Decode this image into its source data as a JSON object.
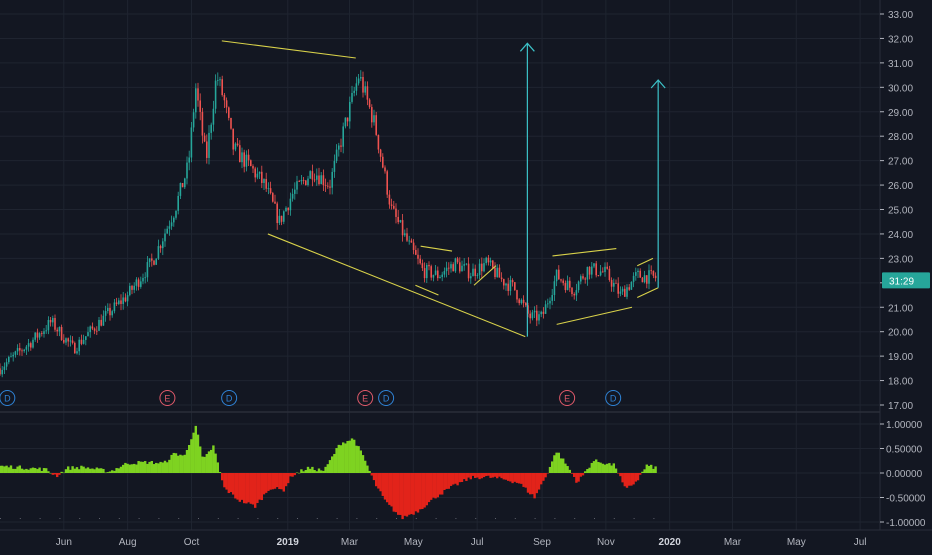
{
  "colors": {
    "background": "#131722",
    "grid": "#1f2430",
    "axis_text": "#b2b5be",
    "up": "#26a69a",
    "down": "#ef5350",
    "pattern_line": "#d9d24a",
    "target_arrow": "#3cc3c9",
    "osc_pos": "#7ed321",
    "osc_neg": "#e2231a",
    "earnings": "#e05a6a",
    "dividend": "#2f83d6",
    "last_label_bg": "#26a69a",
    "separator": "#2a2e39"
  },
  "chart_data": [
    {
      "type": "candlestick",
      "x_range": [
        "2018-04-01",
        "2020-07-20"
      ],
      "ylim": [
        16.9,
        33.5
      ],
      "y_ticks": [
        "17.00",
        "18.00",
        "19.00",
        "20.00",
        "21.00",
        "22.00",
        "23.00",
        "24.00",
        "25.00",
        "26.00",
        "27.00",
        "28.00",
        "29.00",
        "30.00",
        "31.00",
        "32.00",
        "33.00"
      ],
      "x_ticks": [
        {
          "label": "Jun",
          "date": "2018-06-01"
        },
        {
          "label": "Aug",
          "date": "2018-08-01"
        },
        {
          "label": "Oct",
          "date": "2018-10-01"
        },
        {
          "label": "2019",
          "date": "2019-01-01",
          "bold": true
        },
        {
          "label": "Mar",
          "date": "2019-03-01"
        },
        {
          "label": "May",
          "date": "2019-05-01"
        },
        {
          "label": "Jul",
          "date": "2019-07-01"
        },
        {
          "label": "Sep",
          "date": "2019-09-01"
        },
        {
          "label": "Nov",
          "date": "2019-11-01"
        },
        {
          "label": "2020",
          "date": "2020-01-01",
          "bold": true
        },
        {
          "label": "Mar",
          "date": "2020-03-01"
        },
        {
          "label": "May",
          "date": "2020-05-01"
        },
        {
          "label": "Jul",
          "date": "2020-07-01"
        }
      ],
      "close_path": [
        [
          "2018-04-01",
          18.5
        ],
        [
          "2018-05-01",
          19.6
        ],
        [
          "2018-05-20",
          20.4
        ],
        [
          "2018-06-10",
          19.3
        ],
        [
          "2018-07-10",
          20.6
        ],
        [
          "2018-08-01",
          21.5
        ],
        [
          "2018-08-25",
          22.9
        ],
        [
          "2018-09-15",
          25.0
        ],
        [
          "2018-09-28",
          26.8
        ],
        [
          "2018-10-05",
          30.0
        ],
        [
          "2018-10-15",
          27.0
        ],
        [
          "2018-10-25",
          30.5
        ],
        [
          "2018-11-01",
          29.5
        ],
        [
          "2018-11-10",
          27.5
        ],
        [
          "2018-11-25",
          26.8
        ],
        [
          "2018-12-10",
          26.0
        ],
        [
          "2018-12-24",
          24.5
        ],
        [
          "2019-01-05",
          25.6
        ],
        [
          "2019-01-25",
          26.6
        ],
        [
          "2019-02-10",
          26.0
        ],
        [
          "2019-02-25",
          28.5
        ],
        [
          "2019-03-10",
          30.5
        ],
        [
          "2019-03-25",
          28.5
        ],
        [
          "2019-04-10",
          25.0
        ],
        [
          "2019-04-25",
          23.7
        ],
        [
          "2019-05-10",
          22.5
        ],
        [
          "2019-05-25",
          22.3
        ],
        [
          "2019-06-10",
          22.8
        ],
        [
          "2019-06-25",
          22.4
        ],
        [
          "2019-07-10",
          22.8
        ],
        [
          "2019-07-25",
          22.1
        ],
        [
          "2019-08-05",
          21.8
        ],
        [
          "2019-08-20",
          20.6
        ],
        [
          "2019-09-01",
          20.6
        ],
        [
          "2019-09-15",
          22.3
        ],
        [
          "2019-10-01",
          21.7
        ],
        [
          "2019-10-15",
          22.6
        ],
        [
          "2019-11-01",
          22.4
        ],
        [
          "2019-11-15",
          21.5
        ],
        [
          "2019-12-01",
          22.3
        ],
        [
          "2019-12-20",
          22.2
        ]
      ],
      "last_price_label": "31:29",
      "last_price": 22.1,
      "pattern_lines": [
        [
          [
            "2018-10-30",
            31.9
          ],
          [
            "2019-03-07",
            31.2
          ]
        ],
        [
          [
            "2018-12-13",
            24.0
          ],
          [
            "2019-08-16",
            19.8
          ]
        ],
        [
          [
            "2019-05-08",
            23.5
          ],
          [
            "2019-06-07",
            23.3
          ]
        ],
        [
          [
            "2019-05-03",
            21.9
          ],
          [
            "2019-05-25",
            21.5
          ]
        ],
        [
          [
            "2019-06-28",
            21.9
          ],
          [
            "2019-07-19",
            22.7
          ]
        ],
        [
          [
            "2019-09-11",
            23.1
          ],
          [
            "2019-11-11",
            23.4
          ]
        ],
        [
          [
            "2019-09-15",
            20.3
          ],
          [
            "2019-11-26",
            21.0
          ]
        ],
        [
          [
            "2019-12-01",
            22.7
          ],
          [
            "2019-12-16",
            23.0
          ]
        ],
        [
          [
            "2019-12-01",
            21.4
          ],
          [
            "2019-12-21",
            21.8
          ]
        ]
      ],
      "target_arrows": [
        {
          "date": "2019-08-18",
          "from": 19.8,
          "to": 31.8
        },
        {
          "date": "2019-12-21",
          "from": 21.8,
          "to": 30.3
        }
      ],
      "events": [
        {
          "label": "D",
          "kind": "dividend",
          "date": "2018-04-08"
        },
        {
          "label": "E",
          "kind": "earnings",
          "date": "2018-09-08"
        },
        {
          "label": "D",
          "kind": "dividend",
          "date": "2018-11-06"
        },
        {
          "label": "E",
          "kind": "earnings",
          "date": "2019-03-16"
        },
        {
          "label": "D",
          "kind": "dividend",
          "date": "2019-04-05"
        },
        {
          "label": "E",
          "kind": "earnings",
          "date": "2019-09-25"
        },
        {
          "label": "D",
          "kind": "dividend",
          "date": "2019-11-08"
        }
      ]
    },
    {
      "type": "area",
      "ylim": [
        -1.08,
        1.12
      ],
      "y_ticks": [
        "1.00000",
        "0.50000",
        "0.00000",
        "-0.50000",
        "-1.00000"
      ],
      "y_tick_values": [
        1,
        0.5,
        0,
        -0.5,
        -1
      ],
      "x_range": [
        "2018-04-01",
        "2020-07-20"
      ],
      "values_path": [
        [
          "2018-04-01",
          0.14
        ],
        [
          "2018-05-01",
          0.1
        ],
        [
          "2018-05-15",
          0.07
        ],
        [
          "2018-05-25",
          -0.06
        ],
        [
          "2018-06-05",
          0.1
        ],
        [
          "2018-06-20",
          0.12
        ],
        [
          "2018-07-15",
          0.03
        ],
        [
          "2018-08-01",
          0.2
        ],
        [
          "2018-08-20",
          0.22
        ],
        [
          "2018-09-05",
          0.2
        ],
        [
          "2018-09-15",
          0.4
        ],
        [
          "2018-09-25",
          0.35
        ],
        [
          "2018-10-05",
          0.98
        ],
        [
          "2018-10-12",
          0.25
        ],
        [
          "2018-10-22",
          0.55
        ],
        [
          "2018-11-01",
          -0.3
        ],
        [
          "2018-11-15",
          -0.55
        ],
        [
          "2018-12-01",
          -0.68
        ],
        [
          "2018-12-15",
          -0.3
        ],
        [
          "2018-12-28",
          -0.35
        ],
        [
          "2019-01-05",
          -0.05
        ],
        [
          "2019-01-20",
          0.1
        ],
        [
          "2019-02-05",
          0.05
        ],
        [
          "2019-02-20",
          0.6
        ],
        [
          "2019-03-05",
          0.7
        ],
        [
          "2019-03-15",
          0.3
        ],
        [
          "2019-03-25",
          -0.2
        ],
        [
          "2019-04-05",
          -0.6
        ],
        [
          "2019-04-20",
          -0.92
        ],
        [
          "2019-05-05",
          -0.78
        ],
        [
          "2019-05-25",
          -0.45
        ],
        [
          "2019-06-10",
          -0.25
        ],
        [
          "2019-06-25",
          -0.1
        ],
        [
          "2019-07-10",
          -0.08
        ],
        [
          "2019-07-25",
          -0.12
        ],
        [
          "2019-08-10",
          -0.2
        ],
        [
          "2019-08-25",
          -0.5
        ],
        [
          "2019-09-05",
          -0.05
        ],
        [
          "2019-09-15",
          0.45
        ],
        [
          "2019-09-25",
          0.15
        ],
        [
          "2019-10-05",
          -0.2
        ],
        [
          "2019-10-20",
          0.25
        ],
        [
          "2019-11-01",
          0.2
        ],
        [
          "2019-11-10",
          0.15
        ],
        [
          "2019-11-20",
          -0.35
        ],
        [
          "2019-12-01",
          -0.15
        ],
        [
          "2019-12-10",
          0.15
        ],
        [
          "2019-12-20",
          0.1
        ]
      ]
    }
  ]
}
